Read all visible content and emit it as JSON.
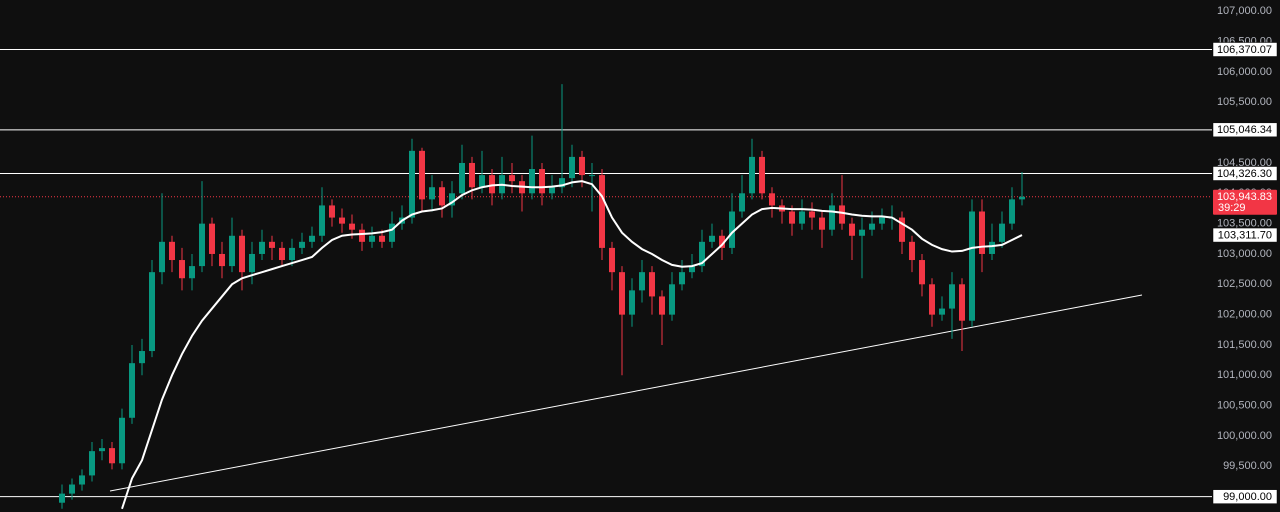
{
  "chart_data": {
    "type": "candlestick",
    "background": "#0f0f0f",
    "up_color": "#089981",
    "down_color": "#f23645",
    "level_color": "#ffffff",
    "ma_color": "#ffffff",
    "trendline_color": "#ffffff",
    "axis_text_color": "#b2b5be",
    "ylim": [
      98747,
      107186
    ],
    "yticks": [
      {
        "value": 99000,
        "label": "99,000.00"
      },
      {
        "value": 99500,
        "label": "99,500.00"
      },
      {
        "value": 100000,
        "label": "100,000.00"
      },
      {
        "value": 100500,
        "label": "100,500.00"
      },
      {
        "value": 101000,
        "label": "101,000.00"
      },
      {
        "value": 101500,
        "label": "101,500.00"
      },
      {
        "value": 102000,
        "label": "102,000.00"
      },
      {
        "value": 102500,
        "label": "102,500.00"
      },
      {
        "value": 103000,
        "label": "103,000.00"
      },
      {
        "value": 103500,
        "label": "103,500.00"
      },
      {
        "value": 104000,
        "label": "104,000.00"
      },
      {
        "value": 104500,
        "label": "104,500.00"
      },
      {
        "value": 105000,
        "label": "105,000.00"
      },
      {
        "value": 105500,
        "label": "105,500.00"
      },
      {
        "value": 106000,
        "label": "106,000.00"
      },
      {
        "value": 106500,
        "label": "106,500.00"
      },
      {
        "value": 107000,
        "label": "107,000.00"
      }
    ],
    "open": [
      98900,
      99050,
      99200,
      99350,
      99750,
      99800,
      99550,
      100300,
      101200,
      101400,
      102700,
      103200,
      102900,
      102600,
      102800,
      103500,
      103000,
      102800,
      103300,
      102700,
      103000,
      103200,
      103100,
      102900,
      103100,
      103200,
      103300,
      103800,
      103600,
      103500,
      103400,
      103200,
      103300,
      103200,
      103500,
      103600,
      104700,
      103900,
      104100,
      103800,
      104000,
      104500,
      104100,
      104300,
      104000,
      104300,
      104200,
      104000,
      104400,
      104000,
      104100,
      104250,
      104600,
      104300,
      104300,
      103100,
      102700,
      102000,
      102400,
      102700,
      102300,
      102000,
      102500,
      102700,
      102800,
      103200,
      103300,
      103100,
      103700,
      104000,
      104600,
      104000,
      103800,
      103700,
      103500,
      103700,
      103600,
      103400,
      103800,
      103500,
      103300,
      103400,
      103500,
      103600,
      103600,
      103200,
      102900,
      102500,
      102000,
      102100,
      102500,
      101900,
      103700,
      103000,
      103200,
      103500,
      103900
    ],
    "high": [
      99200,
      99300,
      99450,
      99900,
      99950,
      99900,
      100450,
      101500,
      101600,
      102900,
      104000,
      103300,
      103100,
      103000,
      104200,
      103600,
      103200,
      103600,
      103400,
      103200,
      103400,
      103300,
      103200,
      103250,
      103350,
      103450,
      104100,
      103900,
      103750,
      103650,
      103500,
      103450,
      103400,
      103700,
      103800,
      104900,
      104750,
      104300,
      104200,
      104200,
      104800,
      104600,
      104700,
      104400,
      104600,
      104500,
      104300,
      104950,
      104500,
      104300,
      105800,
      104800,
      104700,
      104500,
      104400,
      103200,
      102800,
      102600,
      102900,
      102800,
      102400,
      102700,
      102900,
      103000,
      103400,
      103500,
      103400,
      104000,
      104300,
      104900,
      104700,
      104100,
      103900,
      103800,
      103900,
      103850,
      103700,
      104000,
      104300,
      103600,
      103600,
      103700,
      103750,
      103800,
      103700,
      103300,
      103000,
      102600,
      102300,
      102700,
      102600,
      103900,
      103900,
      103500,
      103700,
      104100,
      104350
    ],
    "low": [
      98800,
      98950,
      99100,
      99250,
      99600,
      99450,
      99450,
      100200,
      101000,
      101300,
      102500,
      102700,
      102400,
      102400,
      102700,
      102800,
      102600,
      102700,
      102400,
      102500,
      102900,
      102900,
      102800,
      102800,
      103000,
      103100,
      103200,
      103450,
      103350,
      103250,
      103050,
      103100,
      103100,
      103100,
      103400,
      103500,
      103700,
      103700,
      103600,
      103600,
      103900,
      103900,
      104000,
      103800,
      103900,
      104000,
      103700,
      103900,
      103800,
      103900,
      104000,
      104100,
      104100,
      103700,
      102900,
      102400,
      101000,
      101800,
      102200,
      102000,
      101500,
      101900,
      102400,
      102600,
      102700,
      103100,
      102900,
      103000,
      103600,
      103900,
      103900,
      103600,
      103500,
      103300,
      103400,
      103400,
      103100,
      103300,
      103400,
      102900,
      102600,
      103300,
      103400,
      103400,
      103000,
      102700,
      102300,
      101800,
      101900,
      101600,
      101400,
      101800,
      102700,
      102900,
      103100,
      103400,
      103800
    ],
    "close": [
      99050,
      99200,
      99350,
      99750,
      99800,
      99550,
      100300,
      101200,
      101400,
      102700,
      103200,
      102900,
      102600,
      102800,
      103500,
      103000,
      102800,
      103300,
      102700,
      103000,
      103200,
      103100,
      102900,
      103100,
      103200,
      103300,
      103800,
      103600,
      103500,
      103400,
      103200,
      103300,
      103200,
      103500,
      103600,
      104700,
      103900,
      104100,
      103800,
      104000,
      104500,
      104100,
      104300,
      104000,
      104300,
      104200,
      104000,
      104400,
      104000,
      104100,
      104250,
      104600,
      104300,
      104300,
      103100,
      102700,
      102000,
      102400,
      102700,
      102300,
      102000,
      102500,
      102700,
      102800,
      103200,
      103300,
      103100,
      103700,
      104000,
      104600,
      104000,
      103800,
      103700,
      103500,
      103700,
      103600,
      103400,
      103800,
      103500,
      103300,
      103400,
      103500,
      103600,
      103600,
      103200,
      102900,
      102500,
      102000,
      102100,
      102500,
      101900,
      103700,
      103000,
      103200,
      103500,
      103900,
      103943.83
    ],
    "moving_average": {
      "label": "103,311.70",
      "values": [
        null,
        null,
        null,
        null,
        null,
        null,
        98800,
        99300,
        99600,
        100100,
        100600,
        101000,
        101350,
        101650,
        101900,
        102100,
        102300,
        102500,
        102600,
        102650,
        102700,
        102750,
        102800,
        102850,
        102900,
        102950,
        103100,
        103230,
        103300,
        103320,
        103330,
        103340,
        103360,
        103400,
        103550,
        103650,
        103700,
        103720,
        103750,
        103850,
        103970,
        104050,
        104100,
        104130,
        104140,
        104120,
        104110,
        104100,
        104100,
        104110,
        104130,
        104180,
        104200,
        104150,
        103950,
        103600,
        103350,
        103200,
        103080,
        103000,
        102900,
        102820,
        102790,
        102800,
        102850,
        103000,
        103150,
        103350,
        103500,
        103650,
        103740,
        103760,
        103750,
        103740,
        103740,
        103730,
        103710,
        103700,
        103680,
        103650,
        103630,
        103620,
        103620,
        103600,
        103500,
        103400,
        103250,
        103150,
        103080,
        103040,
        103050,
        103100,
        103120,
        103130,
        103150,
        103230,
        103311.7
      ]
    },
    "levels": [
      {
        "value": 106370.07,
        "label": "106,370.07"
      },
      {
        "value": 105046.34,
        "label": "105,046.34"
      },
      {
        "value": 104326.3,
        "label": "104,326.30"
      },
      {
        "value": 99000,
        "label": "99,000.00"
      }
    ],
    "current_price": {
      "value": 103943.83,
      "label": "103,943.83",
      "countdown": "39:29"
    },
    "trendline": {
      "values": [
        99093,
        102324
      ]
    }
  }
}
